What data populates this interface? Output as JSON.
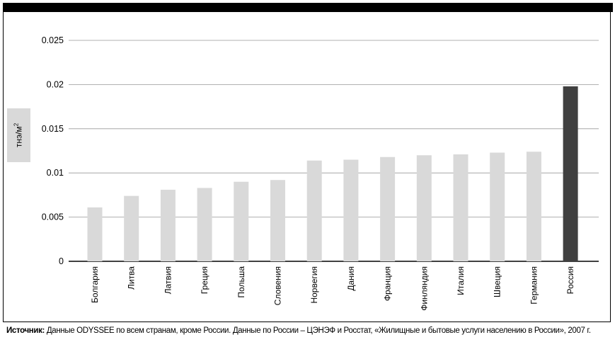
{
  "chart_data": {
    "type": "bar",
    "categories": [
      "Болгария",
      "Литва",
      "Латвия",
      "Греция",
      "Польша",
      "Словения",
      "Норвегия",
      "Дания",
      "Франция",
      "Финляндия",
      "Италия",
      "Швеция",
      "Германия",
      "Россия"
    ],
    "values": [
      0.0061,
      0.0074,
      0.0081,
      0.0083,
      0.009,
      0.0092,
      0.0114,
      0.0115,
      0.0118,
      0.012,
      0.0121,
      0.0123,
      0.0124,
      0.0198
    ],
    "highlight_category": "Россия",
    "ylabel": "тнэ/м",
    "ylabel_sup": "2",
    "ylim": [
      0,
      0.025
    ],
    "yticks": [
      "0",
      "0.005",
      "0.01",
      "0.015",
      "0.02",
      "0.025"
    ],
    "grid": true,
    "colors": {
      "bar": "#d9d9d9",
      "highlight": "#404040",
      "grid": "#999999"
    }
  },
  "source": {
    "label": "Источник:",
    "text": " Данные ODYSSEE по всем странам, кроме России. Данные по России – ЦЭНЭФ и Росстат, «Жилищные и бытовые услуги населению в России», 2007 г."
  }
}
